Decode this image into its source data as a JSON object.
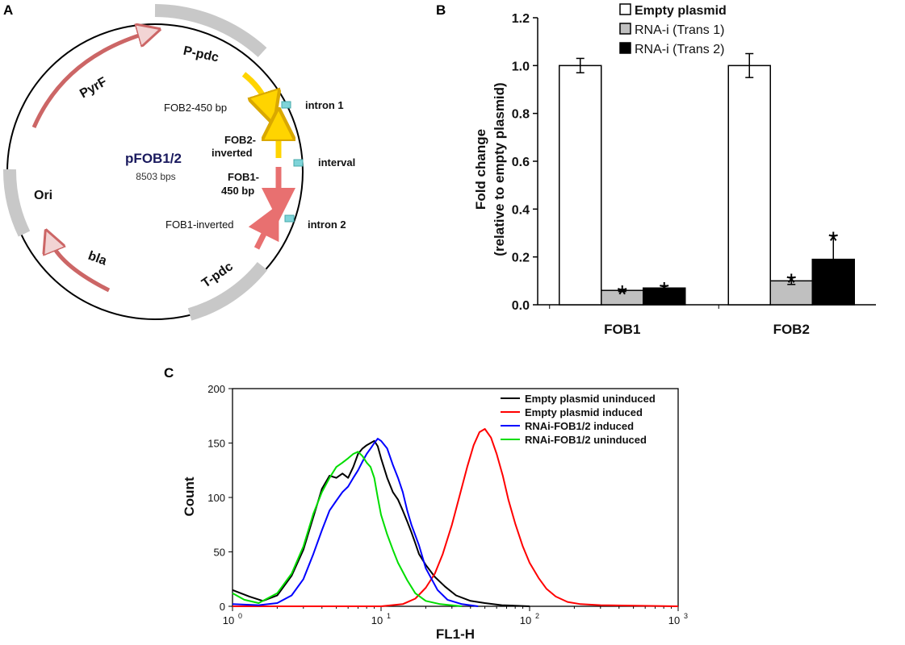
{
  "panels": {
    "a": {
      "label": "A",
      "title": "pFOB1/2",
      "size": "8503 bps",
      "features": {
        "pyrf": "PyrF",
        "ppdc": "P-pdc",
        "ori": "Ori",
        "bla": "bla",
        "tpdc": "T-pdc",
        "fob2_450": "FOB2-450 bp",
        "fob2_inv_1": "FOB2-",
        "fob2_inv_2": "inverted",
        "fob1_450_1": "FOB1-",
        "fob1_450_2": "450 bp",
        "fob1_inv": "FOB1-inverted",
        "intron1": "intron 1",
        "interval": "interval",
        "intron2": "intron 2"
      },
      "colors": {
        "backbone": "#c8c8c8",
        "marker": "#7fd4d9",
        "arrow_red": "#e87070",
        "arrow_yellow": "#ffd400"
      }
    },
    "b": {
      "label": "B"
    },
    "c": {
      "label": "C"
    }
  },
  "chart_data": [
    {
      "panel": "B",
      "type": "bar",
      "categories": [
        "FOB1",
        "FOB2"
      ],
      "series": [
        {
          "name": "Empty plasmid",
          "values": [
            1.0,
            1.0
          ],
          "errors": [
            0.03,
            0.05
          ],
          "color": "#ffffff"
        },
        {
          "name": "RNA-i (Trans 1)",
          "values": [
            0.06,
            0.1
          ],
          "errors": [
            0.005,
            0.015
          ],
          "color": "#c0c0c0"
        },
        {
          "name": "RNA-i (Trans 2)",
          "values": [
            0.07,
            0.19
          ],
          "errors": [
            0.01,
            0.1
          ],
          "color": "#000000"
        }
      ],
      "significance_marker": "*",
      "significant": [
        [
          false,
          true,
          true
        ],
        [
          false,
          true,
          true
        ]
      ],
      "ylabel_line1": "Fold change",
      "ylabel_line2": "(relative to empty plasmid)",
      "ylim": [
        0,
        1.2
      ],
      "yticks": [
        "0.0",
        "0.2",
        "0.4",
        "0.6",
        "0.8",
        "1.0",
        "1.2"
      ],
      "legend_position": "top"
    },
    {
      "panel": "C",
      "type": "line",
      "xlabel": "FL1-H",
      "ylabel": "Count",
      "xscale": "log",
      "xlim": [
        1,
        1000
      ],
      "ylim": [
        0,
        200
      ],
      "xticks": [
        {
          "base": "10",
          "exp": "0"
        },
        {
          "base": "10",
          "exp": "1"
        },
        {
          "base": "10",
          "exp": "2"
        },
        {
          "base": "10",
          "exp": "3"
        }
      ],
      "yticks": [
        "0",
        "50",
        "100",
        "150",
        "200"
      ],
      "legend_position": "top-right",
      "series": [
        {
          "name": "Empty plasmid uninduced",
          "color": "#000000",
          "x": [
            1,
            1.3,
            1.6,
            2,
            2.5,
            3,
            3.5,
            4,
            4.5,
            5,
            5.5,
            6,
            6.5,
            7,
            7.5,
            8,
            8.5,
            9,
            9.5,
            10,
            11,
            12,
            13,
            14,
            15,
            16,
            17,
            18,
            20,
            23,
            27,
            32,
            40,
            50,
            65,
            100
          ],
          "y": [
            15,
            9,
            5,
            10,
            28,
            52,
            82,
            108,
            120,
            118,
            122,
            118,
            128,
            140,
            145,
            148,
            150,
            152,
            147,
            136,
            118,
            105,
            98,
            88,
            78,
            68,
            58,
            48,
            38,
            27,
            18,
            10,
            5,
            3,
            1,
            0
          ]
        },
        {
          "name": "Empty plasmid induced",
          "color": "#ff0000",
          "x": [
            1,
            5,
            10,
            14,
            17,
            20,
            23,
            26,
            30,
            34,
            38,
            42,
            46,
            50,
            55,
            60,
            66,
            72,
            80,
            90,
            100,
            115,
            130,
            150,
            180,
            220,
            300,
            1000
          ],
          "y": [
            0,
            0,
            0,
            2,
            7,
            17,
            30,
            48,
            75,
            103,
            128,
            148,
            160,
            163,
            155,
            140,
            120,
            98,
            76,
            55,
            40,
            26,
            16,
            9,
            4,
            2,
            1,
            0
          ]
        },
        {
          "name": "RNAi-FOB1/2 induced",
          "color": "#0000ff",
          "x": [
            1,
            1.5,
            2,
            2.5,
            3,
            3.5,
            4,
            4.5,
            5,
            5.5,
            6,
            6.5,
            7,
            7.5,
            8,
            8.5,
            9,
            9.5,
            10,
            11,
            12,
            13,
            14,
            15,
            16,
            18,
            20,
            24,
            28,
            35,
            45
          ],
          "y": [
            2,
            1,
            3,
            10,
            25,
            48,
            70,
            88,
            97,
            105,
            110,
            118,
            125,
            133,
            140,
            145,
            150,
            154,
            152,
            145,
            130,
            118,
            105,
            88,
            75,
            56,
            35,
            15,
            6,
            2,
            0
          ]
        },
        {
          "name": "RNAi-FOB1/2 uninduced",
          "color": "#00dd00",
          "x": [
            1,
            1.2,
            1.5,
            2,
            2.5,
            3,
            3.5,
            4,
            4.5,
            5,
            5.5,
            6,
            6.5,
            7,
            7.5,
            8,
            8.5,
            9,
            9.5,
            10,
            11,
            12,
            13,
            15,
            17,
            20,
            25,
            35
          ],
          "y": [
            12,
            6,
            3,
            12,
            30,
            55,
            85,
            105,
            118,
            128,
            132,
            136,
            140,
            142,
            138,
            132,
            128,
            118,
            100,
            84,
            66,
            52,
            40,
            24,
            12,
            5,
            2,
            0
          ]
        }
      ]
    }
  ]
}
